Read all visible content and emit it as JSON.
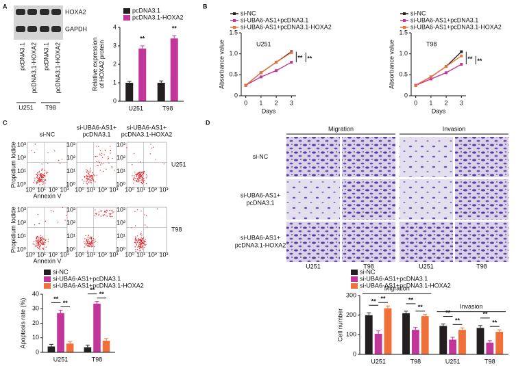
{
  "panel_labels": [
    "A",
    "B",
    "C",
    "D"
  ],
  "western_blot": {
    "bands": [
      "HOXA2",
      "GAPDH"
    ],
    "lanes": [
      "pcDNA3.1",
      "pcDNA3.1-HOXA2",
      "pcDNA3.1",
      "pcDNA3.1-HOXA2"
    ],
    "groups": [
      "U251",
      "T98"
    ]
  },
  "flow_cytometry": {
    "columns": [
      [
        "si-NC"
      ],
      [
        "si-UBA6-AS1+",
        "pcDNA3.1"
      ],
      [
        "si-UBA6-AS1+",
        "pcDNA3.1-HOXA2"
      ]
    ],
    "rows": [
      "U251",
      "T98"
    ],
    "y_label": "Propidium Iodide",
    "x_label": "Annexin V",
    "ticks": [
      "10⁰",
      "10¹",
      "10²",
      "10³"
    ]
  },
  "microscopy": {
    "column_groups": [
      "Migration",
      "Invasion"
    ],
    "rows": [
      [
        "si-NC"
      ],
      [
        "si-UBA6-AS1+",
        "pcDNA3.1"
      ],
      [
        "si-UBA6-AS1+",
        "pcDNA3.1-HOXA2"
      ]
    ],
    "cell_lines": [
      "U251",
      "T98",
      "U251",
      "T98"
    ]
  },
  "chart_data": [
    {
      "type": "bar",
      "categories": [
        "U251",
        "T98"
      ],
      "series": [
        {
          "name": "pcDNA3.1",
          "color": "#231f20",
          "values": [
            1.0,
            1.0
          ],
          "errors": [
            0.08,
            0.1
          ]
        },
        {
          "name": "pcDNA3.1-HOXA2",
          "color": "#c2359a",
          "values": [
            2.85,
            3.4
          ],
          "errors": [
            0.15,
            0.15
          ]
        }
      ],
      "ylim": [
        0,
        4
      ],
      "yticks": [
        0,
        1,
        2,
        3,
        4
      ],
      "y_label": [
        "Relative expression",
        "of HOXA2 protein"
      ],
      "annotations": [
        "**",
        "**"
      ]
    },
    {
      "type": "line",
      "title": "U251",
      "x": [
        0,
        1,
        2,
        3
      ],
      "series": [
        {
          "name": "si-NC",
          "color": "#231f20",
          "values": [
            0.25,
            0.55,
            0.8,
            1.05
          ]
        },
        {
          "name": "si-UBA6-AS1+pcDNA3.1",
          "color": "#c2359a",
          "values": [
            0.25,
            0.45,
            0.6,
            0.8
          ]
        },
        {
          "name": "si-UBA6-AS1+pcDNA3.1-HOXA2",
          "color": "#f0703a",
          "values": [
            0.25,
            0.55,
            0.8,
            1.03
          ]
        }
      ],
      "xlim": [
        -0.3,
        3.3
      ],
      "xticks": [
        0,
        1,
        2,
        3
      ],
      "ylim": [
        0,
        1.5
      ],
      "yticks": [
        0,
        0.5,
        {
          "value": 1,
          "label": "1.0"
        },
        1.5
      ],
      "x_label": "Days",
      "y_label": "Absorbance value",
      "annotations": [
        "**",
        "**"
      ]
    },
    {
      "type": "line",
      "title": "T98",
      "x": [
        0,
        1,
        2,
        3
      ],
      "series": [
        {
          "name": "si-NC",
          "color": "#231f20",
          "values": [
            0.25,
            0.45,
            0.7,
            1.05
          ]
        },
        {
          "name": "si-UBA6-AS1+pcDNA3.1",
          "color": "#c2359a",
          "values": [
            0.25,
            0.4,
            0.55,
            0.75
          ]
        },
        {
          "name": "si-UBA6-AS1+pcDNA3.1-HOXA2",
          "color": "#f0703a",
          "values": [
            0.25,
            0.45,
            0.7,
            0.95
          ]
        }
      ],
      "xlim": [
        -0.3,
        3.3
      ],
      "xticks": [
        0,
        1,
        2,
        3
      ],
      "ylim": [
        0,
        1.5
      ],
      "yticks": [
        0,
        0.5,
        {
          "value": 1,
          "label": "1.0"
        },
        1.5
      ],
      "x_label": "Days",
      "y_label": "Absorbance value",
      "annotations": [
        "**",
        "**"
      ]
    },
    {
      "type": "bar",
      "categories": [
        "U251",
        "T98"
      ],
      "series": [
        {
          "name": "si-NC",
          "color": "#231f20",
          "values": [
            4,
            3.5
          ],
          "errors": [
            1.5,
            1.5
          ]
        },
        {
          "name": "si-UBA6-AS1+pcDNA3.1",
          "color": "#c2359a",
          "values": [
            27,
            33.5
          ],
          "errors": [
            2,
            1.5
          ]
        },
        {
          "name": "si-UBA6-AS1+pcDNA3.1-HOXA2",
          "color": "#f0703a",
          "values": [
            6,
            8
          ],
          "errors": [
            1.5,
            1.5
          ]
        }
      ],
      "ylim": [
        0,
        40
      ],
      "yticks": [
        0,
        10,
        20,
        30,
        40
      ],
      "y_label": "Apoptosis rate (%)",
      "annotations": [
        "**",
        "**",
        "**",
        "**"
      ]
    },
    {
      "type": "bar",
      "categories": [
        "U251",
        "T98",
        "U251",
        "T98"
      ],
      "group_labels": [
        "Migration",
        "Invasion"
      ],
      "series": [
        {
          "name": "si-NC",
          "color": "#231f20",
          "values": [
            200,
            210,
            145,
            135
          ],
          "errors": [
            12,
            10,
            10,
            12
          ]
        },
        {
          "name": "si-UBA6-AS1+pcDNA3.1",
          "color": "#c2359a",
          "values": [
            105,
            125,
            75,
            60
          ],
          "errors": [
            15,
            12,
            12,
            10
          ]
        },
        {
          "name": "si-UBA6-AS1+pcDNA3.1-HOXA2",
          "color": "#f0703a",
          "values": [
            235,
            195,
            125,
            115
          ],
          "errors": [
            12,
            8,
            10,
            10
          ]
        }
      ],
      "ylim": [
        0,
        300
      ],
      "yticks": [
        0,
        100,
        200,
        300
      ],
      "y_label": "Cell number",
      "annotations": [
        "**",
        "**",
        "**",
        "**",
        "**",
        "**",
        "**",
        "**"
      ]
    }
  ]
}
